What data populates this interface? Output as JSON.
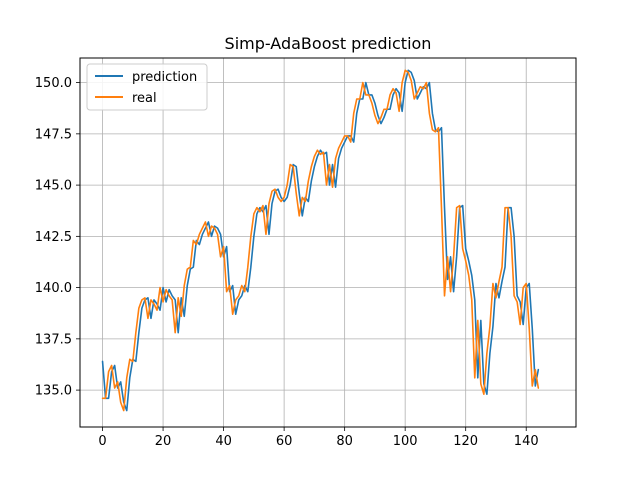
{
  "chart_data": {
    "type": "line",
    "title": "Simp-AdaBoost prediction",
    "xlabel": "",
    "ylabel": "",
    "xlim": [
      -7.45,
      156.45
    ],
    "ylim": [
      133.2,
      151.2
    ],
    "x_ticks": [
      0,
      20,
      40,
      60,
      80,
      100,
      120,
      140
    ],
    "y_ticks": [
      135.0,
      137.5,
      140.0,
      142.5,
      145.0,
      147.5,
      150.0
    ],
    "x_tick_labels": [
      "0",
      "20",
      "40",
      "60",
      "80",
      "100",
      "120",
      "140"
    ],
    "y_tick_labels": [
      "135.0",
      "137.5",
      "140.0",
      "142.5",
      "145.0",
      "147.5",
      "150.0"
    ],
    "grid": true,
    "legend_position": "upper-left",
    "series": [
      {
        "name": "prediction",
        "color": "#1f77b4",
        "values": [
          136.4,
          134.6,
          134.6,
          135.9,
          136.2,
          135.1,
          135.4,
          134.4,
          134.0,
          135.6,
          136.5,
          136.4,
          137.8,
          139.0,
          139.4,
          139.5,
          138.5,
          139.4,
          139.2,
          138.9,
          140.0,
          139.3,
          139.9,
          139.6,
          139.4,
          137.8,
          139.5,
          138.6,
          140.1,
          140.9,
          141.0,
          142.3,
          142.1,
          142.6,
          142.9,
          143.2,
          142.5,
          143.0,
          142.9,
          142.6,
          141.5,
          142.0,
          139.8,
          140.1,
          138.7,
          139.4,
          139.6,
          140.1,
          139.8,
          141.0,
          142.5,
          143.6,
          143.9,
          143.7,
          144.0,
          142.6,
          144.1,
          144.7,
          144.8,
          144.4,
          144.2,
          144.4,
          145.0,
          146.0,
          145.9,
          144.6,
          143.5,
          144.4,
          144.2,
          145.2,
          145.9,
          146.4,
          146.7,
          146.5,
          146.6,
          145.0,
          146.0,
          144.9,
          146.3,
          146.8,
          147.1,
          147.4,
          147.4,
          147.1,
          148.5,
          149.2,
          149.2,
          150.0,
          149.4,
          149.4,
          149.0,
          148.4,
          148.0,
          148.3,
          148.7,
          148.7,
          149.4,
          149.7,
          149.5,
          148.6,
          150.0,
          150.6,
          150.5,
          150.1,
          149.2,
          149.5,
          149.8,
          149.7,
          150.0,
          148.5,
          147.7,
          147.6,
          147.8,
          143.9,
          140.4,
          141.5,
          139.8,
          141.5,
          143.9,
          144.0,
          141.9,
          141.3,
          140.6,
          139.4,
          135.6,
          138.4,
          135.3,
          134.8,
          136.8,
          138.1,
          140.2,
          139.5,
          140.3,
          141.0,
          143.9,
          143.9,
          142.5,
          139.6,
          139.3,
          138.2,
          140.0,
          140.2,
          138.0,
          135.2,
          136.0
        ],
        "x_start": 0
      },
      {
        "name": "real",
        "color": "#ff7f0e",
        "values": [
          134.6,
          134.6,
          135.9,
          136.2,
          135.1,
          135.4,
          134.4,
          134.0,
          135.6,
          136.5,
          136.4,
          137.8,
          139.0,
          139.4,
          139.5,
          138.5,
          139.4,
          139.2,
          138.9,
          140.0,
          139.3,
          139.9,
          139.6,
          139.4,
          137.8,
          139.5,
          138.6,
          140.1,
          140.9,
          141.0,
          142.3,
          142.1,
          142.6,
          142.9,
          143.2,
          142.5,
          143.0,
          142.9,
          142.6,
          141.5,
          142.0,
          139.8,
          140.1,
          138.7,
          139.4,
          139.6,
          140.1,
          139.8,
          141.0,
          142.5,
          143.6,
          143.9,
          143.7,
          144.0,
          142.6,
          144.1,
          144.7,
          144.8,
          144.4,
          144.2,
          144.4,
          145.0,
          146.0,
          145.9,
          144.6,
          143.5,
          144.4,
          144.2,
          145.2,
          145.9,
          146.4,
          146.7,
          146.5,
          146.6,
          145.0,
          146.0,
          144.9,
          146.3,
          146.8,
          147.1,
          147.4,
          147.4,
          147.1,
          148.5,
          149.2,
          149.2,
          150.0,
          149.4,
          149.4,
          149.0,
          148.4,
          148.0,
          148.3,
          148.7,
          148.7,
          149.4,
          149.7,
          149.5,
          148.6,
          150.0,
          150.6,
          150.5,
          150.1,
          149.2,
          149.5,
          149.8,
          149.7,
          150.0,
          148.5,
          147.7,
          147.6,
          147.8,
          143.9,
          139.6,
          141.5,
          139.8,
          141.5,
          143.9,
          144.0,
          141.9,
          141.3,
          140.6,
          139.4,
          135.6,
          138.4,
          135.3,
          134.8,
          136.8,
          138.1,
          140.2,
          139.5,
          140.3,
          141.0,
          143.9,
          143.9,
          142.5,
          139.6,
          139.3,
          138.2,
          140.0,
          140.2,
          138.0,
          135.2,
          136.0,
          135.1
        ],
        "x_start": 0
      }
    ]
  }
}
